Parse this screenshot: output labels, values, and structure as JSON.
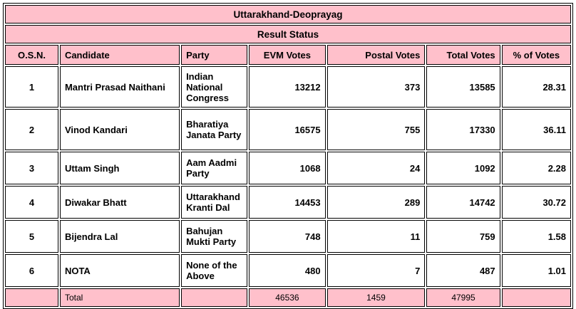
{
  "title": "Uttarakhand-Deoprayag",
  "subtitle": "Result Status",
  "columns": [
    "O.S.N.",
    "Candidate",
    "Party",
    "EVM Votes",
    "Postal Votes",
    "Total Votes",
    "% of Votes"
  ],
  "rows": [
    {
      "osn": "1",
      "candidate": "Mantri Prasad Naithani",
      "party": "Indian National Congress",
      "evm": "13212",
      "postal": "373",
      "total": "13585",
      "pct": "28.31"
    },
    {
      "osn": "2",
      "candidate": "Vinod Kandari",
      "party": "Bharatiya Janata Party",
      "evm": "16575",
      "postal": "755",
      "total": "17330",
      "pct": "36.11"
    },
    {
      "osn": "3",
      "candidate": "Uttam Singh",
      "party": "Aam Aadmi Party",
      "evm": "1068",
      "postal": "24",
      "total": "1092",
      "pct": "2.28"
    },
    {
      "osn": "4",
      "candidate": "Diwakar Bhatt",
      "party": "Uttarakhand Kranti Dal",
      "evm": "14453",
      "postal": "289",
      "total": "14742",
      "pct": "30.72"
    },
    {
      "osn": "5",
      "candidate": "Bijendra Lal",
      "party": "Bahujan Mukti Party",
      "evm": "748",
      "postal": "11",
      "total": "759",
      "pct": "1.58"
    },
    {
      "osn": "6",
      "candidate": "NOTA",
      "party": "None of the Above",
      "evm": "480",
      "postal": "7",
      "total": "487",
      "pct": "1.01"
    }
  ],
  "total_row": {
    "label": "Total",
    "evm": "46536",
    "postal": "1459",
    "total": "47995"
  },
  "colors": {
    "header_bg": "#FFC0CB",
    "border": "#000000"
  }
}
